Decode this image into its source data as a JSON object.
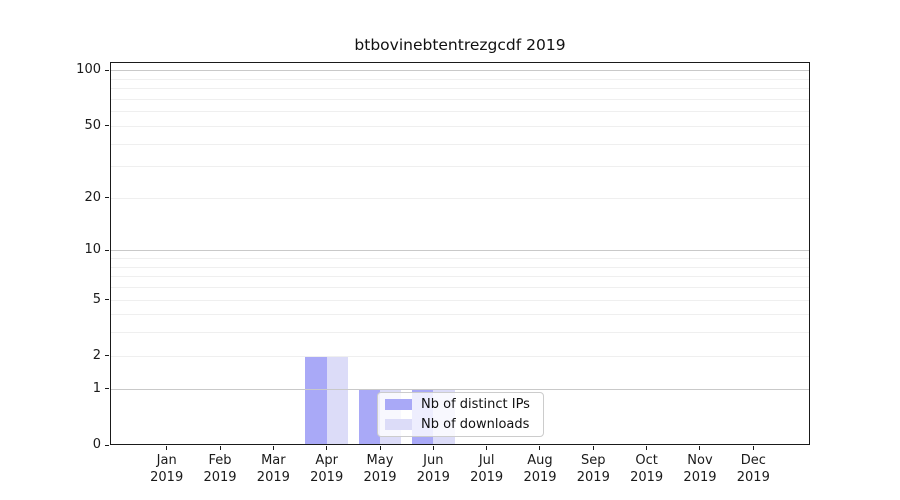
{
  "chart_data": {
    "type": "bar",
    "title": "btbovinebtentrezgcdf 2019",
    "categories": [
      "Jan",
      "Feb",
      "Mar",
      "Apr",
      "May",
      "Jun",
      "Jul",
      "Aug",
      "Sep",
      "Oct",
      "Nov",
      "Dec"
    ],
    "year": "2019",
    "series": [
      {
        "name": "Nb of distinct IPs",
        "color": "#a9a9f7",
        "values": [
          0,
          0,
          0,
          2,
          1,
          1,
          0,
          0,
          0,
          0,
          0,
          0
        ]
      },
      {
        "name": "Nb of downloads",
        "color": "#dcdcf8",
        "values": [
          0,
          0,
          0,
          2,
          1,
          1,
          0,
          0,
          0,
          0,
          0,
          0
        ]
      }
    ],
    "xlabel": "",
    "ylabel": "",
    "yscale": "log1p",
    "y_ticks": [
      0,
      1,
      2,
      5,
      10,
      20,
      50,
      100
    ],
    "y_top": 111,
    "y_gridlines_minor": [
      2,
      3,
      4,
      5,
      6,
      7,
      8,
      9,
      20,
      30,
      40,
      50,
      60,
      70,
      80,
      90
    ],
    "y_gridlines_major": [
      1,
      10,
      100
    ],
    "grid": true,
    "grid_on_top_of_bars": true,
    "legend_position": "lower center"
  },
  "colors": {
    "grid_minor": "#efefef",
    "grid_major": "#c9c9c9",
    "axis": "#1a1a1a",
    "legend_border": "#cccccc",
    "background": "#ffffff"
  }
}
